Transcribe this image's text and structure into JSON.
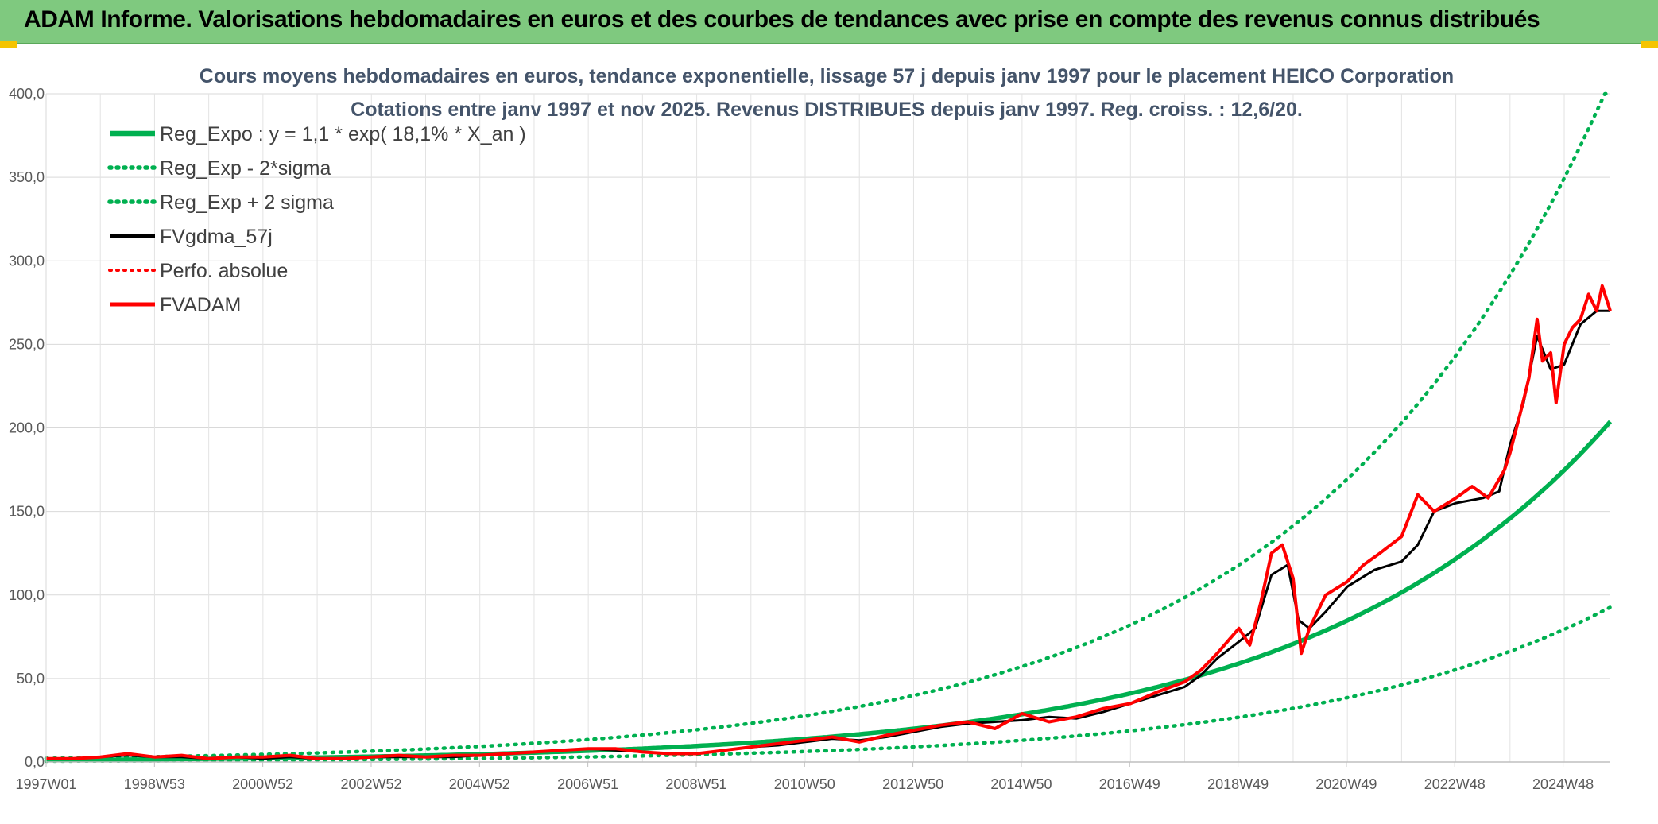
{
  "header": {
    "title": "ADAM Informe. Valorisations hebdomadaires en euros et des courbes de tendances avec prise en compte des revenus connus distribués",
    "background": "#7fc97f",
    "accent": "#f5c400"
  },
  "chart_data": {
    "type": "line",
    "title": "Cours moyens hebdomadaires en euros, tendance exponentielle, lissage 57 j depuis janv 1997 pour le placement HEICO Corporation",
    "subtitle": "Cotations entre janv 1997 et nov 2025. Revenus DISTRIBUES depuis janv 1997. Reg. croiss. : 12,6/20.",
    "xlabel": "",
    "ylabel": "",
    "x_tick_labels": [
      "1997W01",
      "1998W53",
      "2000W52",
      "2002W52",
      "2004W52",
      "2006W51",
      "2008W51",
      "2010W50",
      "2012W50",
      "2014W50",
      "2016W49",
      "2018W49",
      "2020W49",
      "2022W48",
      "2024W48"
    ],
    "x_range": [
      1997.0,
      2025.85
    ],
    "ylim": [
      0,
      400
    ],
    "y_ticks": [
      "0,0",
      "50,0",
      "100,0",
      "150,0",
      "200,0",
      "250,0",
      "300,0",
      "350,0",
      "400,0"
    ],
    "grid": true,
    "legend_position": "top-left",
    "series": [
      {
        "name": "Reg_Expo : y = 1,1 * exp( 18,1% *  X_an )",
        "color": "#00b050",
        "style": "solid",
        "model": {
          "a": 1.1,
          "rate": 0.181
        }
      },
      {
        "name": "Reg_Exp - 2*sigma",
        "color": "#00b050",
        "style": "dotted",
        "model": {
          "a": 0.5,
          "rate": 0.181
        }
      },
      {
        "name": "Reg_Exp + 2 sigma",
        "color": "#00b050",
        "style": "dotted",
        "model": {
          "a": 2.2,
          "rate": 0.181,
          "cap": 400
        }
      },
      {
        "name": "FVgdma_57j",
        "color": "#000000",
        "style": "solid",
        "x": [
          1997.0,
          1997.5,
          1998.0,
          1998.5,
          1999.0,
          1999.5,
          2000.0,
          2000.5,
          2001.0,
          2001.5,
          2002.0,
          2002.5,
          2003.0,
          2003.5,
          2004.0,
          2004.5,
          2005.0,
          2005.5,
          2006.0,
          2006.5,
          2007.0,
          2007.5,
          2008.0,
          2008.5,
          2009.0,
          2009.5,
          2010.0,
          2010.5,
          2011.0,
          2011.5,
          2012.0,
          2012.5,
          2013.0,
          2013.5,
          2014.0,
          2014.5,
          2015.0,
          2015.5,
          2016.0,
          2016.5,
          2017.0,
          2017.5,
          2018.0,
          2018.3,
          2018.6,
          2019.0,
          2019.3,
          2019.6,
          2019.9,
          2020.1,
          2020.3,
          2020.6,
          2021.0,
          2021.5,
          2022.0,
          2022.3,
          2022.6,
          2023.0,
          2023.5,
          2023.8,
          2024.0,
          2024.25,
          2024.5,
          2024.75,
          2025.0,
          2025.3,
          2025.6,
          2025.85
        ],
        "values": [
          2,
          2,
          3,
          4,
          3,
          3,
          2,
          3,
          2,
          3,
          2,
          2,
          3,
          3,
          3,
          3,
          4,
          5,
          6,
          7,
          8,
          7,
          6,
          5,
          5,
          7,
          9,
          10,
          12,
          14,
          13,
          15,
          18,
          21,
          23,
          24,
          25,
          27,
          26,
          30,
          35,
          40,
          45,
          52,
          62,
          72,
          80,
          112,
          118,
          85,
          80,
          90,
          105,
          115,
          120,
          130,
          150,
          155,
          158,
          162,
          190,
          215,
          255,
          235,
          238,
          262,
          270,
          270
        ]
      },
      {
        "name": "Perfo. absolue",
        "color": "#ff0000",
        "style": "dotted"
      },
      {
        "name": "FVADAM",
        "color": "#ff0000",
        "style": "solid",
        "x": [
          1997.0,
          1997.5,
          1998.0,
          1998.5,
          1999.0,
          1999.5,
          2000.0,
          2000.5,
          2001.0,
          2001.5,
          2002.0,
          2002.5,
          2003.0,
          2003.5,
          2004.0,
          2004.5,
          2005.0,
          2005.5,
          2006.0,
          2006.5,
          2007.0,
          2007.5,
          2008.0,
          2008.5,
          2009.0,
          2009.5,
          2010.0,
          2010.5,
          2011.0,
          2011.5,
          2012.0,
          2012.5,
          2013.0,
          2013.5,
          2014.0,
          2014.5,
          2015.0,
          2015.5,
          2016.0,
          2016.5,
          2017.0,
          2017.5,
          2018.0,
          2018.3,
          2018.6,
          2019.0,
          2019.2,
          2019.4,
          2019.6,
          2019.8,
          2020.0,
          2020.15,
          2020.3,
          2020.6,
          2021.0,
          2021.3,
          2021.6,
          2022.0,
          2022.3,
          2022.6,
          2023.0,
          2023.3,
          2023.6,
          2023.9,
          2024.0,
          2024.2,
          2024.35,
          2024.5,
          2024.6,
          2024.75,
          2024.85,
          2025.0,
          2025.15,
          2025.3,
          2025.45,
          2025.6,
          2025.7,
          2025.85
        ],
        "values": [
          2,
          2,
          3,
          5,
          3,
          4,
          2,
          3,
          3,
          4,
          2,
          2,
          3,
          4,
          3,
          4,
          4,
          5,
          6,
          7,
          8,
          8,
          6,
          5,
          5,
          7,
          9,
          11,
          13,
          15,
          12,
          16,
          19,
          22,
          24,
          20,
          29,
          24,
          27,
          32,
          35,
          42,
          48,
          55,
          65,
          80,
          70,
          95,
          125,
          130,
          110,
          65,
          80,
          100,
          108,
          118,
          125,
          135,
          160,
          150,
          158,
          165,
          158,
          175,
          185,
          210,
          230,
          265,
          240,
          245,
          215,
          250,
          260,
          265,
          280,
          270,
          285,
          270
        ]
      }
    ]
  }
}
